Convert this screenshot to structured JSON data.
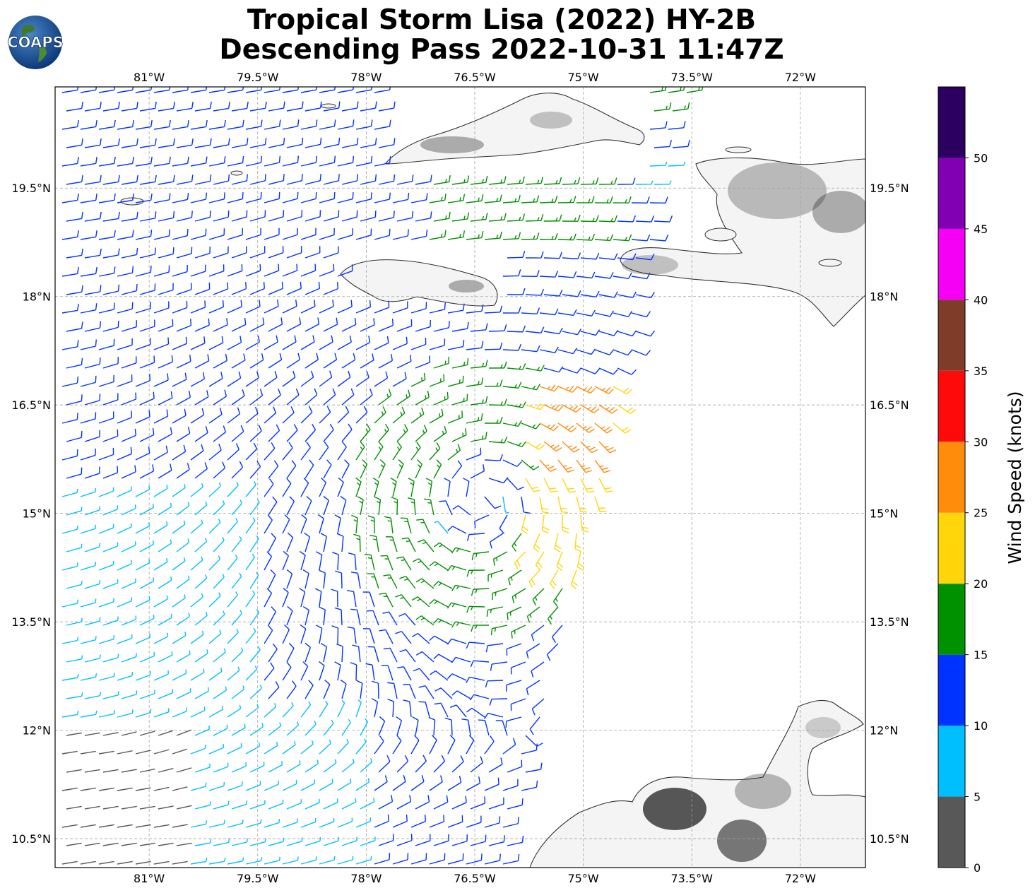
{
  "title_line1": "Tropical Storm Lisa (2022) HY-2B",
  "title_line2": "Descending Pass 2022-10-31 11:47Z",
  "logo_text": "COAPS",
  "lon_ticks": [
    "81°W",
    "79.5°W",
    "78°W",
    "76.5°W",
    "75°W",
    "73.5°W",
    "72°W"
  ],
  "lon_values": [
    -81,
    -79.5,
    -78,
    -76.5,
    -75,
    -73.5,
    -72
  ],
  "lat_ticks": [
    "19.5°N",
    "18°N",
    "16.5°N",
    "15°N",
    "13.5°N",
    "12°N",
    "10.5°N"
  ],
  "lat_values": [
    19.5,
    18,
    16.5,
    15,
    13.5,
    12,
    10.5
  ],
  "map_extent": {
    "lon_min": -82.3,
    "lon_max": -71.1,
    "lat_min": 10.1,
    "lat_max": 20.9
  },
  "storm_center": {
    "lon": -76.4,
    "lat": 15.2
  },
  "colorbar": {
    "label": "Wind Speed (knots)",
    "ticks": [
      "0",
      "5",
      "10",
      "15",
      "20",
      "25",
      "30",
      "35",
      "40",
      "45",
      "50"
    ],
    "bins": [
      {
        "min": 0,
        "max": 5,
        "color": "#585858"
      },
      {
        "min": 5,
        "max": 10,
        "color": "#00bfff"
      },
      {
        "min": 10,
        "max": 15,
        "color": "#0033ff"
      },
      {
        "min": 15,
        "max": 20,
        "color": "#009100"
      },
      {
        "min": 20,
        "max": 25,
        "color": "#ffd60a"
      },
      {
        "min": 25,
        "max": 30,
        "color": "#ff8c0a"
      },
      {
        "min": 30,
        "max": 35,
        "color": "#ff0a0a"
      },
      {
        "min": 35,
        "max": 40,
        "color": "#7f3c28"
      },
      {
        "min": 40,
        "max": 45,
        "color": "#f500f5"
      },
      {
        "min": 45,
        "max": 50,
        "color": "#8200b4"
      },
      {
        "min": 50,
        "max": 55,
        "color": "#2b0060"
      }
    ]
  },
  "land_color": "#f4f4f4",
  "coast_color": "#333333",
  "landmasses": [
    "Cuba",
    "Jamaica",
    "Hispaniola",
    "Colombia / Venezuela"
  ]
}
